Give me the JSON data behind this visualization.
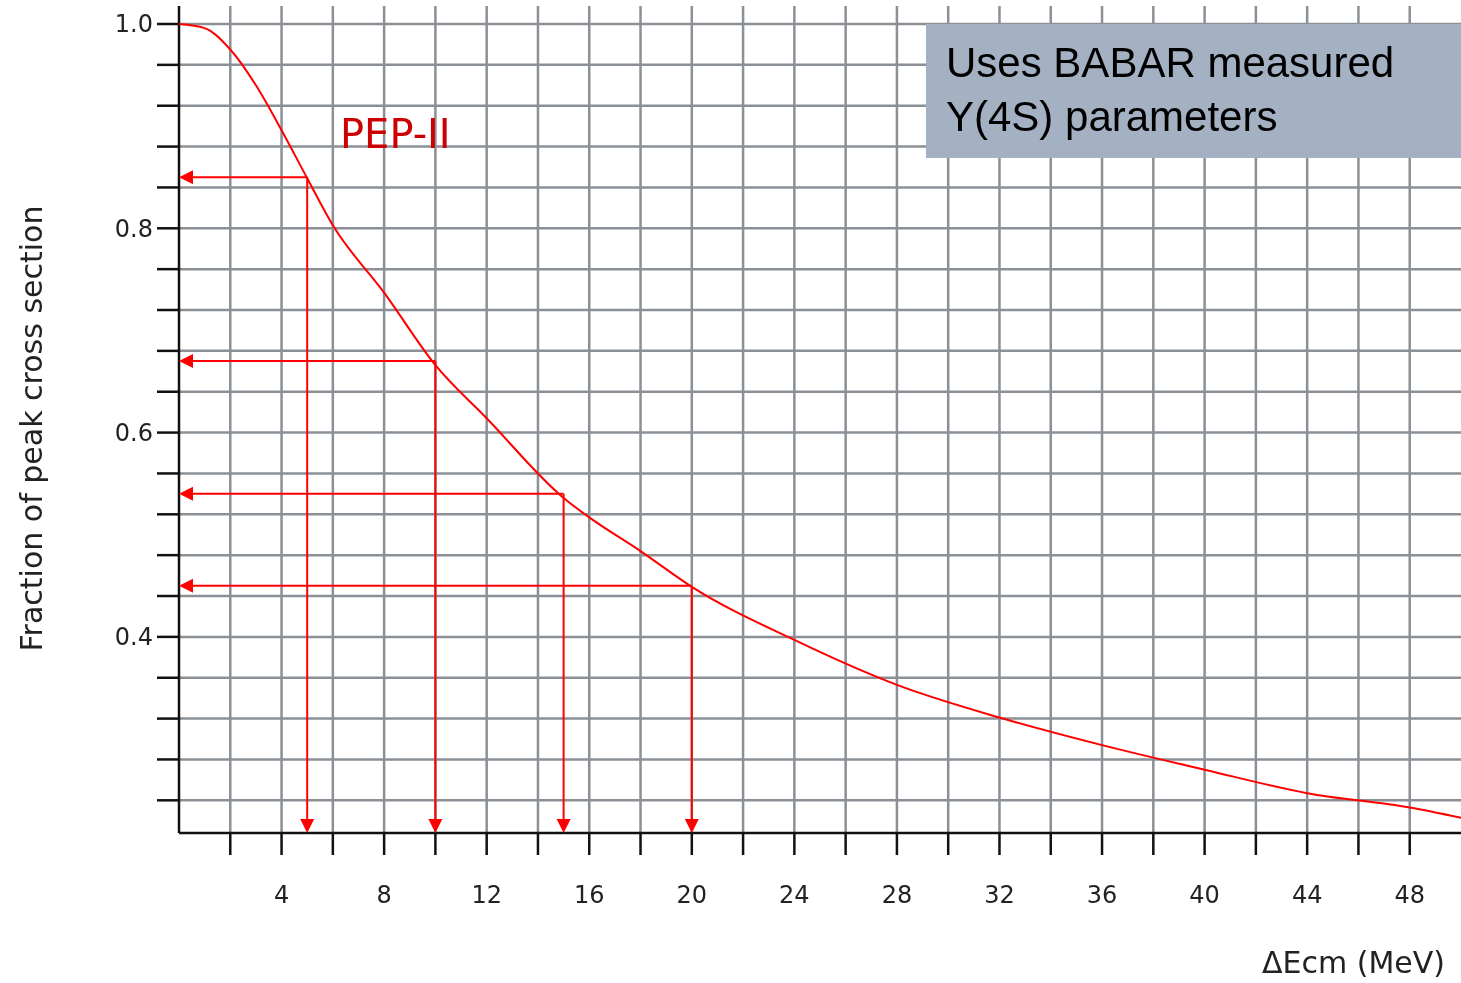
{
  "chart_data": {
    "type": "line",
    "xlabel": "ΔEcm (MeV)",
    "ylabel": "Fraction of peak cross section",
    "x": [
      0,
      1,
      2,
      3,
      4,
      5,
      6,
      8,
      10,
      12,
      15,
      16,
      18,
      20,
      24,
      28,
      32,
      36,
      40,
      44,
      48,
      50
    ],
    "series": [
      {
        "color": "#ff0000",
        "values": [
          1.0,
          0.996,
          0.975,
          0.94,
          0.896,
          0.849,
          0.803,
          0.737,
          0.666,
          0.614,
          0.536,
          0.517,
          0.484,
          0.449,
          0.397,
          0.353,
          0.321,
          0.294,
          0.27,
          0.247,
          0.233,
          0.223
        ]
      }
    ],
    "xlim": [
      0,
      50
    ],
    "xticks": [
      {
        "value": 2,
        "label": null
      },
      4,
      {
        "value": 6,
        "label": null
      },
      8,
      {
        "value": 10,
        "label": null
      },
      12,
      {
        "value": 14,
        "label": null
      },
      16,
      {
        "value": 18,
        "label": null
      },
      20,
      {
        "value": 22,
        "label": null
      },
      24,
      {
        "value": 26,
        "label": null
      },
      28,
      {
        "value": 30,
        "label": null
      },
      32,
      {
        "value": 34,
        "label": null
      },
      36,
      {
        "value": 38,
        "label": null
      },
      40,
      {
        "value": 42,
        "label": null
      },
      44,
      {
        "value": 46,
        "label": null
      },
      48
    ],
    "ylim": [
      0.208,
      1.0
    ],
    "yticks": [
      {
        "value": 0.24,
        "label": null
      },
      {
        "value": 0.28,
        "label": null
      },
      {
        "value": 0.32,
        "label": null
      },
      {
        "value": 0.36,
        "label": null
      },
      0.4,
      {
        "value": 0.44,
        "label": null
      },
      {
        "value": 0.48,
        "label": null
      },
      {
        "value": 0.52,
        "label": null
      },
      {
        "value": 0.56,
        "label": null
      },
      0.6,
      {
        "value": 0.64,
        "label": null
      },
      {
        "value": 0.68,
        "label": null
      },
      {
        "value": 0.72,
        "label": null
      },
      {
        "value": 0.76,
        "label": null
      },
      0.8,
      {
        "value": 0.84,
        "label": null
      },
      {
        "value": 0.88,
        "label": null
      },
      {
        "value": 0.92,
        "label": null
      },
      {
        "value": 0.96,
        "label": null
      },
      {
        "value": 1,
        "label": "1.0"
      }
    ],
    "grid": true,
    "marker": "none",
    "line_style": "solid",
    "ref_lines": [
      {
        "axis": "x",
        "value": 5,
        "color": "#ff0000"
      },
      {
        "axis": "x",
        "value": 10,
        "color": "#ff0000"
      },
      {
        "axis": "x",
        "value": 15,
        "color": "#ff0000"
      },
      {
        "axis": "x",
        "value": 20,
        "color": "#ff0000"
      },
      {
        "axis": "y",
        "value": 0.85,
        "color": "#ff0000"
      },
      {
        "axis": "y",
        "value": 0.67,
        "color": "#ff0000"
      },
      {
        "axis": "y",
        "value": 0.54,
        "color": "#ff0000"
      },
      {
        "axis": "y",
        "value": 0.45,
        "color": "#ff0000"
      }
    ],
    "annotations": [
      "PEP-II",
      "Uses BABAR measured Υ(4S) parameters"
    ]
  }
}
